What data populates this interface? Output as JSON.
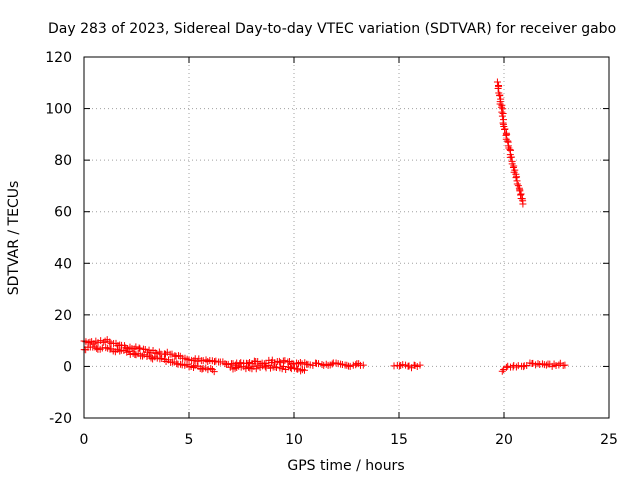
{
  "chart_data": {
    "type": "scatter",
    "title": "Day 283 of 2023, Sidereal Day-to-day VTEC variation (SDTVAR) for receiver gabo",
    "xlabel": "GPS time / hours",
    "ylabel": "SDTVAR / TECUs",
    "xlim": [
      0,
      25
    ],
    "ylim": [
      -20,
      120
    ],
    "xticks": [
      0,
      5,
      10,
      15,
      20,
      25
    ],
    "yticks": [
      -20,
      0,
      20,
      40,
      60,
      80,
      100,
      120
    ],
    "grid": true,
    "marker": "plus",
    "series": [
      {
        "name": "SDTVAR",
        "color": "#ff0000",
        "segments": [
          {
            "x": [
              0.0,
              0.5,
              1.0,
              1.5,
              2.0,
              2.5,
              3.0,
              3.5,
              4.0,
              4.5,
              5.0,
              5.5,
              6.0,
              6.5,
              7.0,
              7.5,
              8.0,
              8.5,
              9.0,
              9.5,
              10.0,
              10.5,
              11.0,
              11.5,
              12.0,
              12.5,
              13.0,
              13.3
            ],
            "y": [
              10.0,
              9.0,
              10.0,
              9.0,
              7.5,
              7.0,
              6.0,
              5.5,
              5.0,
              4.0,
              3.0,
              2.5,
              2.0,
              1.5,
              1.0,
              1.0,
              1.5,
              1.5,
              2.0,
              2.0,
              1.5,
              1.0,
              1.0,
              1.0,
              1.0,
              0.5,
              0.5,
              0.5
            ]
          },
          {
            "x": [
              0.0,
              1.0,
              2.0,
              3.0,
              4.0,
              5.0,
              6.0,
              6.2
            ],
            "y": [
              7.0,
              7.0,
              5.5,
              4.0,
              2.0,
              0.0,
              -1.0,
              -2.0
            ]
          },
          {
            "x": [
              7.0,
              8.0,
              9.0,
              10.0,
              10.5
            ],
            "y": [
              -0.5,
              -0.5,
              0.0,
              -1.0,
              -1.5
            ]
          },
          {
            "x": [
              14.8,
              15.2,
              15.6,
              16.0
            ],
            "y": [
              0.5,
              0.5,
              0.0,
              0.5
            ]
          },
          {
            "x": [
              19.7,
              19.85,
              20.0,
              20.2,
              20.4,
              20.6,
              20.8,
              20.9
            ],
            "y": [
              110,
              102,
              94,
              86,
              79,
              73,
              67,
              63
            ]
          },
          {
            "x": [
              19.9,
              20.2,
              20.6,
              21.0,
              21.4,
              21.8,
              22.2,
              22.6,
              22.9
            ],
            "y": [
              -2.0,
              -0.5,
              0.0,
              0.5,
              1.0,
              1.0,
              0.5,
              1.0,
              0.5
            ]
          }
        ]
      }
    ]
  }
}
